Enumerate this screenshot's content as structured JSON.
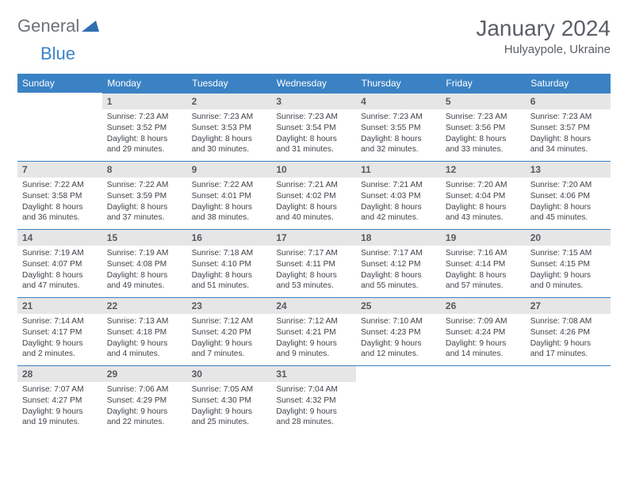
{
  "brand": {
    "part1": "General",
    "part2": "Blue"
  },
  "title": "January 2024",
  "location": "Hulyaypole, Ukraine",
  "colors": {
    "header_bg": "#3b82c4",
    "daynum_bg": "#e6e6e6",
    "text": "#3f4349"
  },
  "weekdays": [
    "Sunday",
    "Monday",
    "Tuesday",
    "Wednesday",
    "Thursday",
    "Friday",
    "Saturday"
  ],
  "weeks": [
    [
      {
        "n": "",
        "sr": "",
        "ss": "",
        "dl": ""
      },
      {
        "n": "1",
        "sr": "Sunrise: 7:23 AM",
        "ss": "Sunset: 3:52 PM",
        "dl": "Daylight: 8 hours and 29 minutes."
      },
      {
        "n": "2",
        "sr": "Sunrise: 7:23 AM",
        "ss": "Sunset: 3:53 PM",
        "dl": "Daylight: 8 hours and 30 minutes."
      },
      {
        "n": "3",
        "sr": "Sunrise: 7:23 AM",
        "ss": "Sunset: 3:54 PM",
        "dl": "Daylight: 8 hours and 31 minutes."
      },
      {
        "n": "4",
        "sr": "Sunrise: 7:23 AM",
        "ss": "Sunset: 3:55 PM",
        "dl": "Daylight: 8 hours and 32 minutes."
      },
      {
        "n": "5",
        "sr": "Sunrise: 7:23 AM",
        "ss": "Sunset: 3:56 PM",
        "dl": "Daylight: 8 hours and 33 minutes."
      },
      {
        "n": "6",
        "sr": "Sunrise: 7:23 AM",
        "ss": "Sunset: 3:57 PM",
        "dl": "Daylight: 8 hours and 34 minutes."
      }
    ],
    [
      {
        "n": "7",
        "sr": "Sunrise: 7:22 AM",
        "ss": "Sunset: 3:58 PM",
        "dl": "Daylight: 8 hours and 36 minutes."
      },
      {
        "n": "8",
        "sr": "Sunrise: 7:22 AM",
        "ss": "Sunset: 3:59 PM",
        "dl": "Daylight: 8 hours and 37 minutes."
      },
      {
        "n": "9",
        "sr": "Sunrise: 7:22 AM",
        "ss": "Sunset: 4:01 PM",
        "dl": "Daylight: 8 hours and 38 minutes."
      },
      {
        "n": "10",
        "sr": "Sunrise: 7:21 AM",
        "ss": "Sunset: 4:02 PM",
        "dl": "Daylight: 8 hours and 40 minutes."
      },
      {
        "n": "11",
        "sr": "Sunrise: 7:21 AM",
        "ss": "Sunset: 4:03 PM",
        "dl": "Daylight: 8 hours and 42 minutes."
      },
      {
        "n": "12",
        "sr": "Sunrise: 7:20 AM",
        "ss": "Sunset: 4:04 PM",
        "dl": "Daylight: 8 hours and 43 minutes."
      },
      {
        "n": "13",
        "sr": "Sunrise: 7:20 AM",
        "ss": "Sunset: 4:06 PM",
        "dl": "Daylight: 8 hours and 45 minutes."
      }
    ],
    [
      {
        "n": "14",
        "sr": "Sunrise: 7:19 AM",
        "ss": "Sunset: 4:07 PM",
        "dl": "Daylight: 8 hours and 47 minutes."
      },
      {
        "n": "15",
        "sr": "Sunrise: 7:19 AM",
        "ss": "Sunset: 4:08 PM",
        "dl": "Daylight: 8 hours and 49 minutes."
      },
      {
        "n": "16",
        "sr": "Sunrise: 7:18 AM",
        "ss": "Sunset: 4:10 PM",
        "dl": "Daylight: 8 hours and 51 minutes."
      },
      {
        "n": "17",
        "sr": "Sunrise: 7:17 AM",
        "ss": "Sunset: 4:11 PM",
        "dl": "Daylight: 8 hours and 53 minutes."
      },
      {
        "n": "18",
        "sr": "Sunrise: 7:17 AM",
        "ss": "Sunset: 4:12 PM",
        "dl": "Daylight: 8 hours and 55 minutes."
      },
      {
        "n": "19",
        "sr": "Sunrise: 7:16 AM",
        "ss": "Sunset: 4:14 PM",
        "dl": "Daylight: 8 hours and 57 minutes."
      },
      {
        "n": "20",
        "sr": "Sunrise: 7:15 AM",
        "ss": "Sunset: 4:15 PM",
        "dl": "Daylight: 9 hours and 0 minutes."
      }
    ],
    [
      {
        "n": "21",
        "sr": "Sunrise: 7:14 AM",
        "ss": "Sunset: 4:17 PM",
        "dl": "Daylight: 9 hours and 2 minutes."
      },
      {
        "n": "22",
        "sr": "Sunrise: 7:13 AM",
        "ss": "Sunset: 4:18 PM",
        "dl": "Daylight: 9 hours and 4 minutes."
      },
      {
        "n": "23",
        "sr": "Sunrise: 7:12 AM",
        "ss": "Sunset: 4:20 PM",
        "dl": "Daylight: 9 hours and 7 minutes."
      },
      {
        "n": "24",
        "sr": "Sunrise: 7:12 AM",
        "ss": "Sunset: 4:21 PM",
        "dl": "Daylight: 9 hours and 9 minutes."
      },
      {
        "n": "25",
        "sr": "Sunrise: 7:10 AM",
        "ss": "Sunset: 4:23 PM",
        "dl": "Daylight: 9 hours and 12 minutes."
      },
      {
        "n": "26",
        "sr": "Sunrise: 7:09 AM",
        "ss": "Sunset: 4:24 PM",
        "dl": "Daylight: 9 hours and 14 minutes."
      },
      {
        "n": "27",
        "sr": "Sunrise: 7:08 AM",
        "ss": "Sunset: 4:26 PM",
        "dl": "Daylight: 9 hours and 17 minutes."
      }
    ],
    [
      {
        "n": "28",
        "sr": "Sunrise: 7:07 AM",
        "ss": "Sunset: 4:27 PM",
        "dl": "Daylight: 9 hours and 19 minutes."
      },
      {
        "n": "29",
        "sr": "Sunrise: 7:06 AM",
        "ss": "Sunset: 4:29 PM",
        "dl": "Daylight: 9 hours and 22 minutes."
      },
      {
        "n": "30",
        "sr": "Sunrise: 7:05 AM",
        "ss": "Sunset: 4:30 PM",
        "dl": "Daylight: 9 hours and 25 minutes."
      },
      {
        "n": "31",
        "sr": "Sunrise: 7:04 AM",
        "ss": "Sunset: 4:32 PM",
        "dl": "Daylight: 9 hours and 28 minutes."
      },
      {
        "n": "",
        "sr": "",
        "ss": "",
        "dl": ""
      },
      {
        "n": "",
        "sr": "",
        "ss": "",
        "dl": ""
      },
      {
        "n": "",
        "sr": "",
        "ss": "",
        "dl": ""
      }
    ]
  ]
}
